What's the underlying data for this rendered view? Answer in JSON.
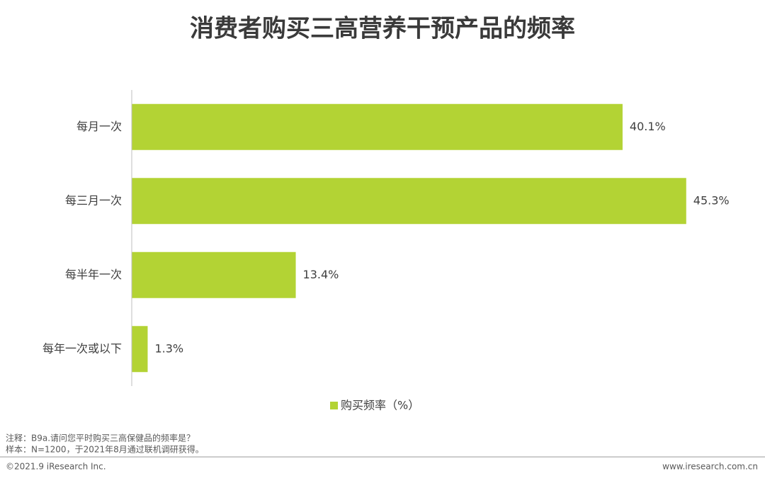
{
  "chart_data": {
    "type": "bar",
    "orientation": "horizontal",
    "title": "消费者购买三高营养干预产品的频率",
    "categories": [
      "每月一次",
      "每三月一次",
      "每半年一次",
      "每年一次或以下"
    ],
    "series": [
      {
        "name": "购买频率（%）",
        "color": "#b3d334",
        "values": [
          40.1,
          45.3,
          13.4,
          1.3
        ],
        "value_labels": [
          "40.1%",
          "45.3%",
          "13.4%",
          "1.3%"
        ]
      }
    ],
    "xlim": [
      0,
      50
    ],
    "legend": "bottom"
  },
  "notes": [
    "注释：B9a.请问您平时购买三高保健品的频率是？",
    "样本：N=1200，于2021年8月通过联机调研获得。"
  ],
  "footer": {
    "left": "©2021.9 iResearch Inc.",
    "right": "www.iresearch.com.cn"
  }
}
